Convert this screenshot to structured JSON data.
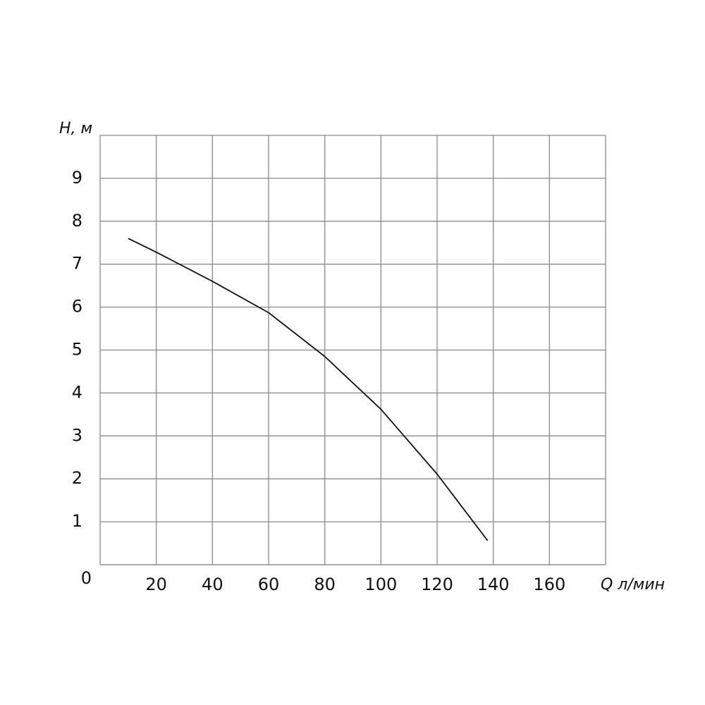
{
  "chart_data": {
    "type": "line",
    "x_label": "Q л/мин",
    "y_label": "H, м",
    "x": [
      10,
      20,
      40,
      60,
      80,
      100,
      120,
      138
    ],
    "values": [
      7.6,
      7.28,
      6.6,
      5.87,
      4.85,
      3.62,
      2.11,
      0.56
    ],
    "color": "#111111",
    "xlim": [
      0,
      180
    ],
    "ylim": [
      0,
      10
    ],
    "xticks": [
      20,
      40,
      60,
      80,
      100,
      120,
      140,
      160
    ],
    "yticks": [
      0,
      1,
      2,
      3,
      4,
      5,
      6,
      7,
      8,
      9
    ],
    "grid": true
  }
}
